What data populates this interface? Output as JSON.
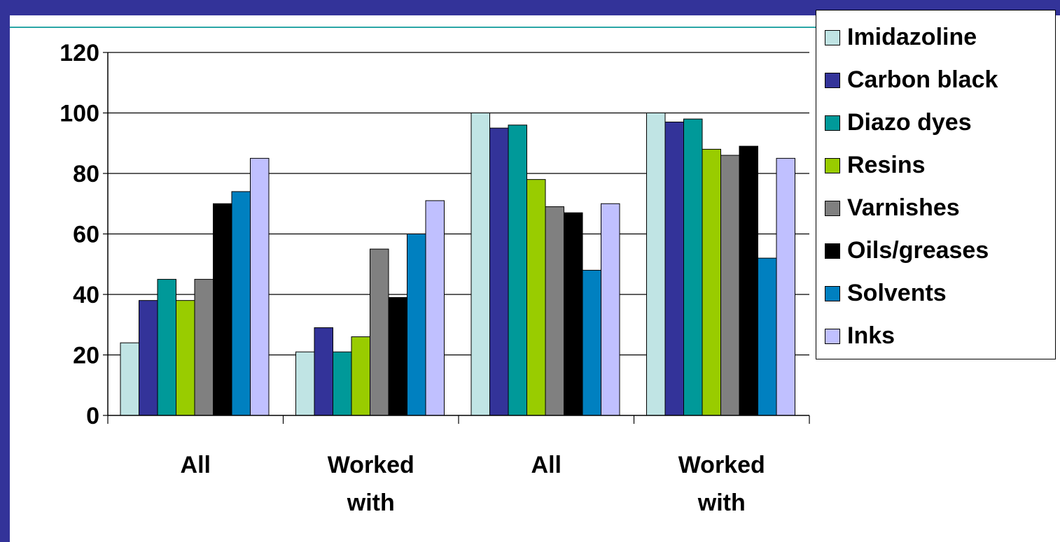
{
  "chart_data": {
    "type": "bar",
    "title": "",
    "xlabel": "",
    "ylabel": "",
    "ylim": [
      0,
      120
    ],
    "yticks": [
      0,
      20,
      40,
      60,
      80,
      100,
      120
    ],
    "grid": true,
    "legend_position": "top-right",
    "categories": [
      [
        "All"
      ],
      [
        "Worked",
        "with"
      ],
      [
        "All"
      ],
      [
        "Worked",
        "with"
      ]
    ],
    "series": [
      {
        "name": "Imidazoline",
        "color": "#c0e4e4",
        "values": [
          24,
          21,
          100,
          100
        ]
      },
      {
        "name": "Carbon black",
        "color": "#333399",
        "values": [
          38,
          29,
          95,
          97
        ]
      },
      {
        "name": "Diazo dyes",
        "color": "#009999",
        "values": [
          45,
          21,
          96,
          98
        ]
      },
      {
        "name": "Resins",
        "color": "#99cc00",
        "values": [
          38,
          26,
          78,
          88
        ]
      },
      {
        "name": "Varnishes",
        "color": "#808080",
        "values": [
          45,
          55,
          69,
          86
        ]
      },
      {
        "name": "Oils/greases",
        "color": "#000000",
        "values": [
          70,
          39,
          67,
          89
        ]
      },
      {
        "name": "Solvents",
        "color": "#0080c0",
        "values": [
          74,
          60,
          48,
          52
        ]
      },
      {
        "name": "Inks",
        "color": "#c0c0ff",
        "values": [
          85,
          71,
          70,
          85
        ]
      }
    ]
  }
}
